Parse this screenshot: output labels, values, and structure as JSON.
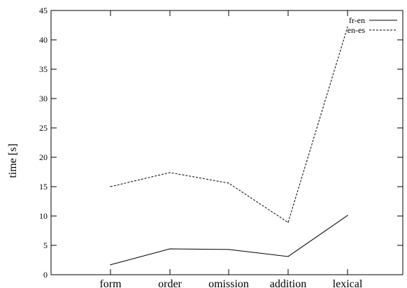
{
  "chart_data": {
    "type": "line",
    "categories": [
      "form",
      "order",
      "omission",
      "addition",
      "lexical"
    ],
    "series": [
      {
        "name": "fr-en",
        "values": [
          1.7,
          4.4,
          4.3,
          3.1,
          10.1
        ],
        "dash": "solid",
        "color": "#000000"
      },
      {
        "name": "en-es",
        "values": [
          15.0,
          17.4,
          15.6,
          8.9,
          42.2
        ],
        "dash": "dashed",
        "color": "#000000"
      }
    ],
    "title": "",
    "xlabel": "",
    "ylabel": "time [s]",
    "ylim": [
      0,
      45
    ],
    "yticks": [
      0,
      5,
      10,
      15,
      20,
      25,
      30,
      35,
      40,
      45
    ],
    "grid": false,
    "legend_position": "top-right"
  }
}
